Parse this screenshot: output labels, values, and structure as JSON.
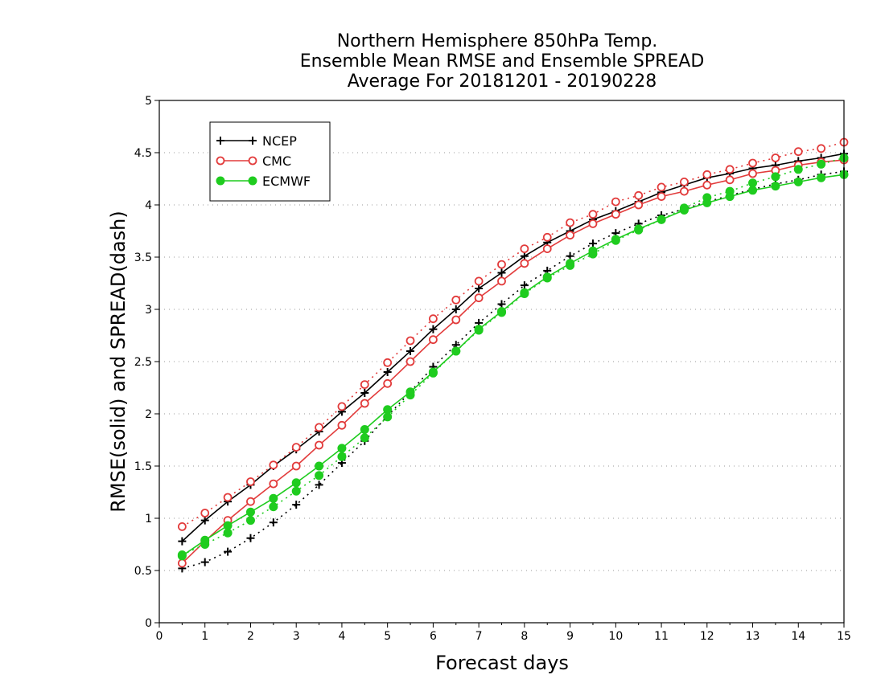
{
  "chart_data": {
    "type": "line",
    "title": [
      "Northern Hemisphere 850hPa Temp.",
      "Ensemble Mean RMSE and Ensemble SPREAD",
      "Average For 20181201 - 20190228"
    ],
    "xlabel": "Forecast days",
    "ylabel": "RMSE(solid) and SPREAD(dash)",
    "xlim": [
      0,
      15
    ],
    "ylim": [
      0,
      5
    ],
    "xticks": [
      "0",
      "1",
      "2",
      "3",
      "4",
      "5",
      "6",
      "7",
      "8",
      "9",
      "10",
      "11",
      "12",
      "13",
      "14",
      "15"
    ],
    "yticks": [
      "0",
      "0.5",
      "1",
      "1.5",
      "2",
      "2.5",
      "3",
      "3.5",
      "4",
      "4.5",
      "5"
    ],
    "grid": true,
    "legend_position": "top-left",
    "x": [
      0.5,
      1,
      1.5,
      2,
      2.5,
      3,
      3.5,
      4,
      4.5,
      5,
      5.5,
      6,
      6.5,
      7,
      7.5,
      8,
      8.5,
      9,
      9.5,
      10,
      10.5,
      11,
      11.5,
      12,
      12.5,
      13,
      13.5,
      14,
      14.5,
      15
    ],
    "series": [
      {
        "name": "NCEP",
        "marker": "plus",
        "color": "#000000",
        "rmse": [
          0.78,
          0.98,
          1.16,
          1.32,
          1.5,
          1.66,
          1.83,
          2.02,
          2.2,
          2.4,
          2.6,
          2.81,
          3.0,
          3.2,
          3.35,
          3.51,
          3.64,
          3.75,
          3.86,
          3.94,
          4.03,
          4.12,
          4.19,
          4.26,
          4.3,
          4.35,
          4.38,
          4.42,
          4.45,
          4.49
        ],
        "spread": [
          0.52,
          0.58,
          0.68,
          0.81,
          0.96,
          1.13,
          1.32,
          1.53,
          1.74,
          1.98,
          2.21,
          2.45,
          2.66,
          2.87,
          3.05,
          3.23,
          3.37,
          3.51,
          3.63,
          3.73,
          3.82,
          3.9,
          3.96,
          4.03,
          4.09,
          4.15,
          4.2,
          4.24,
          4.29,
          4.32
        ]
      },
      {
        "name": "CMC",
        "marker": "circle",
        "color": "#e23b3b",
        "rmse": [
          0.57,
          0.78,
          0.98,
          1.16,
          1.33,
          1.5,
          1.7,
          1.89,
          2.1,
          2.29,
          2.5,
          2.71,
          2.9,
          3.11,
          3.27,
          3.44,
          3.58,
          3.71,
          3.82,
          3.91,
          4.0,
          4.08,
          4.13,
          4.19,
          4.24,
          4.3,
          4.33,
          4.38,
          4.41,
          4.43
        ],
        "spread": [
          0.92,
          1.05,
          1.2,
          1.35,
          1.51,
          1.68,
          1.87,
          2.07,
          2.28,
          2.49,
          2.7,
          2.91,
          3.09,
          3.27,
          3.43,
          3.58,
          3.69,
          3.83,
          3.91,
          4.03,
          4.09,
          4.17,
          4.22,
          4.29,
          4.34,
          4.4,
          4.45,
          4.51,
          4.54,
          4.6
        ]
      },
      {
        "name": "ECMWF",
        "marker": "dot",
        "color": "#1fcc1f",
        "rmse": [
          0.64,
          0.79,
          0.93,
          1.06,
          1.19,
          1.34,
          1.5,
          1.67,
          1.85,
          2.04,
          2.21,
          2.4,
          2.6,
          2.81,
          2.98,
          3.16,
          3.31,
          3.44,
          3.56,
          3.67,
          3.77,
          3.86,
          3.95,
          4.02,
          4.08,
          4.14,
          4.18,
          4.22,
          4.26,
          4.29
        ],
        "spread": [
          0.65,
          0.75,
          0.86,
          0.98,
          1.11,
          1.26,
          1.41,
          1.59,
          1.77,
          1.97,
          2.18,
          2.39,
          2.6,
          2.8,
          2.97,
          3.15,
          3.3,
          3.42,
          3.53,
          3.66,
          3.76,
          3.86,
          3.97,
          4.07,
          4.13,
          4.21,
          4.27,
          4.34,
          4.39,
          4.45
        ]
      }
    ]
  }
}
